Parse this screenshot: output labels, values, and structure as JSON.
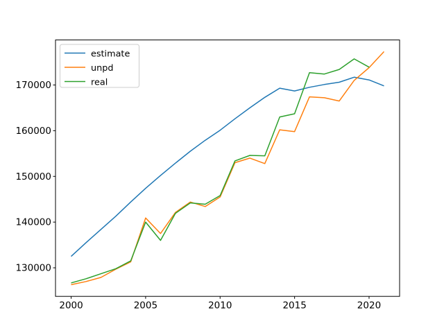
{
  "figure": {
    "background": "#ffffff",
    "axes_edge_color": "#000000",
    "legend_border_color": "#cccccc",
    "legend_background": "#ffffff"
  },
  "chart_data": {
    "type": "line",
    "title": "",
    "xlabel": "",
    "ylabel": "",
    "grid": false,
    "xlim": [
      1998.95,
      2022.05
    ],
    "ylim": [
      123750,
      179850
    ],
    "xticks": [
      2000,
      2005,
      2010,
      2015,
      2020
    ],
    "yticks": [
      130000,
      140000,
      150000,
      160000,
      170000
    ],
    "legend": {
      "position": "upper left",
      "entries": [
        "estimate",
        "unpd",
        "real"
      ]
    },
    "series": [
      {
        "name": "estimate",
        "color": "#1f77b4",
        "x": [
          2000,
          2001,
          2002,
          2003,
          2004,
          2005,
          2006,
          2007,
          2008,
          2009,
          2010,
          2011,
          2012,
          2013,
          2014,
          2015,
          2016,
          2017,
          2018,
          2019,
          2020,
          2021
        ],
        "values": [
          132500,
          135500,
          138400,
          141300,
          144400,
          147400,
          150200,
          152900,
          155500,
          157900,
          160100,
          162600,
          165000,
          167300,
          169300,
          168700,
          169500,
          170100,
          170600,
          171700,
          171100,
          169800
        ]
      },
      {
        "name": "unpd",
        "color": "#ff7f0e",
        "x": [
          2000,
          2001,
          2002,
          2003,
          2004,
          2005,
          2006,
          2007,
          2008,
          2009,
          2010,
          2011,
          2012,
          2013,
          2014,
          2015,
          2016,
          2017,
          2018,
          2019,
          2020,
          2021
        ],
        "values": [
          126300,
          127000,
          127900,
          129700,
          131300,
          140900,
          137500,
          142100,
          144400,
          143400,
          145500,
          153000,
          154000,
          152800,
          160200,
          159800,
          167400,
          167200,
          166500,
          171000,
          173800,
          177300
        ]
      },
      {
        "name": "real",
        "color": "#2ca02c",
        "x": [
          2000,
          2001,
          2002,
          2003,
          2004,
          2005,
          2006,
          2007,
          2008,
          2009,
          2010,
          2011,
          2012,
          2013,
          2014,
          2015,
          2016,
          2017,
          2018,
          2019,
          2020
        ],
        "values": [
          126700,
          127600,
          128700,
          129800,
          131500,
          140000,
          136000,
          141900,
          144200,
          143900,
          145800,
          153400,
          154600,
          154500,
          163000,
          163700,
          172700,
          172400,
          173400,
          175700,
          173900
        ]
      }
    ]
  }
}
